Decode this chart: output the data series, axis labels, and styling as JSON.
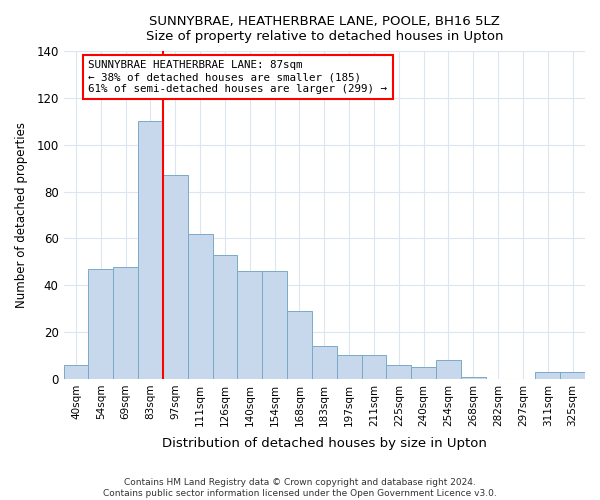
{
  "title": "SUNNYBRAE, HEATHERBRAE LANE, POOLE, BH16 5LZ",
  "subtitle": "Size of property relative to detached houses in Upton",
  "xlabel": "Distribution of detached houses by size in Upton",
  "ylabel": "Number of detached properties",
  "categories": [
    "40sqm",
    "54sqm",
    "69sqm",
    "83sqm",
    "97sqm",
    "111sqm",
    "126sqm",
    "140sqm",
    "154sqm",
    "168sqm",
    "183sqm",
    "197sqm",
    "211sqm",
    "225sqm",
    "240sqm",
    "254sqm",
    "268sqm",
    "282sqm",
    "297sqm",
    "311sqm",
    "325sqm"
  ],
  "values": [
    6,
    47,
    48,
    110,
    87,
    62,
    53,
    46,
    46,
    29,
    14,
    10,
    10,
    6,
    5,
    8,
    1,
    0,
    0,
    3,
    3
  ],
  "bar_color": "#c8d8ec",
  "bar_edge_color": "#7aaac8",
  "annotation_title": "SUNNYBRAE HEATHERBRAE LANE: 87sqm",
  "annotation_line1": "← 38% of detached houses are smaller (185)",
  "annotation_line2": "61% of semi-detached houses are larger (299) →",
  "red_line_index": 3,
  "ylim": [
    0,
    140
  ],
  "yticks": [
    0,
    20,
    40,
    60,
    80,
    100,
    120,
    140
  ],
  "footer1": "Contains HM Land Registry data © Crown copyright and database right 2024.",
  "footer2": "Contains public sector information licensed under the Open Government Licence v3.0.",
  "bg_color": "#ffffff",
  "plot_bg_color": "#ffffff",
  "grid_color": "#dce6f0"
}
